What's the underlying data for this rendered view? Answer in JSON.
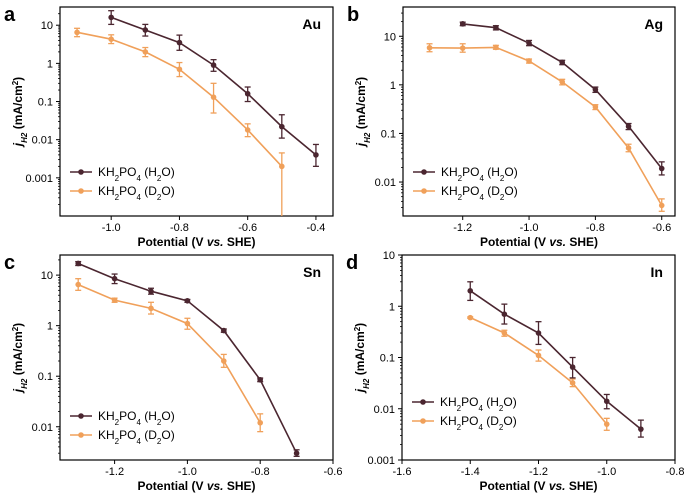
{
  "colors": {
    "h2o": "#4b2630",
    "d2o": "#f0a05a",
    "axis": "#000000"
  },
  "chart_data": [
    {
      "type": "line",
      "panel": "a",
      "metal": "Au",
      "xlabel": "Potential (V vs. SHE)",
      "ylabel": "jH2 (mA/cm2)",
      "log_y": true,
      "xlim": [
        -1.15,
        -0.35
      ],
      "ylim": [
        0.0001,
        30
      ],
      "x_ticks": [
        -1.0,
        -0.8,
        -0.6,
        -0.4
      ],
      "x_tick_labels": [
        "-1.0",
        "-0.8",
        "-0.6",
        "-0.4"
      ],
      "y_ticks": [
        0.001,
        0.01,
        0.1,
        1,
        10
      ],
      "y_tick_labels": [
        "0.001",
        "0.01",
        "0.1",
        "1",
        "10"
      ],
      "legend_position": "bottom-left",
      "series": [
        {
          "name": "KH2PO4 (H2O)",
          "color": "#4b2630",
          "x": [
            -1.0,
            -0.9,
            -0.8,
            -0.7,
            -0.6,
            -0.5,
            -0.4
          ],
          "y": [
            16,
            7.5,
            3.5,
            0.9,
            0.16,
            0.022,
            0.004
          ],
          "err_hi": [
            24,
            10.5,
            5.5,
            1.25,
            0.24,
            0.045,
            0.0075
          ],
          "err_lo": [
            10.5,
            5.2,
            2.2,
            0.62,
            0.1,
            0.011,
            0.002
          ]
        },
        {
          "name": "KH2PO4 (D2O)",
          "color": "#f0a05a",
          "x": [
            -1.1,
            -1.0,
            -0.9,
            -0.8,
            -0.7,
            -0.6,
            -0.5
          ],
          "y": [
            6.5,
            4.3,
            2.0,
            0.7,
            0.13,
            0.018,
            0.002
          ],
          "err_hi": [
            8.3,
            5.6,
            2.6,
            1.05,
            0.3,
            0.026,
            0.0045
          ],
          "err_lo": [
            5.0,
            3.3,
            1.5,
            0.45,
            0.05,
            0.012,
            0.0001
          ]
        }
      ]
    },
    {
      "type": "line",
      "panel": "b",
      "metal": "Ag",
      "xlabel": "Potential (V vs. SHE)",
      "ylabel": "jH2 (mA/cm2)",
      "log_y": true,
      "xlim": [
        -1.38,
        -0.56
      ],
      "ylim": [
        0.002,
        40
      ],
      "x_ticks": [
        -1.2,
        -1.0,
        -0.8,
        -0.6
      ],
      "x_tick_labels": [
        "-1.2",
        "-1.0",
        "-0.8",
        "-0.6"
      ],
      "y_ticks": [
        0.01,
        0.1,
        1,
        10
      ],
      "y_tick_labels": [
        "0.01",
        "0.1",
        "1",
        "10"
      ],
      "legend_position": "bottom-left",
      "series": [
        {
          "name": "KH2PO4 (H2O)",
          "color": "#4b2630",
          "x": [
            -1.2,
            -1.1,
            -1.0,
            -0.9,
            -0.8,
            -0.7,
            -0.6
          ],
          "y": [
            18,
            15,
            7.2,
            2.9,
            0.8,
            0.14,
            0.019
          ],
          "err_hi": [
            19.5,
            16.5,
            8.2,
            3.2,
            0.9,
            0.16,
            0.026
          ],
          "err_lo": [
            16.5,
            13.5,
            6.4,
            2.6,
            0.7,
            0.12,
            0.014
          ]
        },
        {
          "name": "KH2PO4 (D2O)",
          "color": "#f0a05a",
          "x": [
            -1.3,
            -1.2,
            -1.1,
            -1.0,
            -0.9,
            -0.8,
            -0.7,
            -0.6
          ],
          "y": [
            5.8,
            5.7,
            5.9,
            3.1,
            1.15,
            0.35,
            0.05,
            0.0033
          ],
          "err_hi": [
            7.0,
            7.0,
            6.5,
            3.4,
            1.3,
            0.39,
            0.06,
            0.0045
          ],
          "err_lo": [
            4.8,
            4.7,
            5.4,
            2.8,
            1.0,
            0.31,
            0.042,
            0.0025
          ]
        }
      ]
    },
    {
      "type": "line",
      "panel": "c",
      "metal": "Sn",
      "xlabel": "Potential (V vs. SHE)",
      "ylabel": "jH2 (mA/cm2)",
      "log_y": true,
      "xlim": [
        -1.35,
        -0.6
      ],
      "ylim": [
        0.0022,
        25
      ],
      "x_ticks": [
        -1.2,
        -1.0,
        -0.8,
        -0.6
      ],
      "x_tick_labels": [
        "-1.2",
        "-1.0",
        "-0.8",
        "-0.6"
      ],
      "y_ticks": [
        0.01,
        0.1,
        1,
        10
      ],
      "y_tick_labels": [
        "0.01",
        "0.1",
        "1",
        "10"
      ],
      "legend_position": "bottom-left",
      "series": [
        {
          "name": "KH2PO4 (H2O)",
          "color": "#4b2630",
          "x": [
            -1.3,
            -1.2,
            -1.1,
            -1.0,
            -0.9,
            -0.8,
            -0.7
          ],
          "y": [
            17,
            8.5,
            4.8,
            3.1,
            0.8,
            0.085,
            0.003
          ],
          "err_hi": [
            18.5,
            10.5,
            5.5,
            3.3,
            0.86,
            0.092,
            0.0035
          ],
          "err_lo": [
            15.5,
            6.8,
            4.2,
            2.9,
            0.74,
            0.078,
            0.0026
          ]
        },
        {
          "name": "KH2PO4 (D2O)",
          "color": "#f0a05a",
          "x": [
            -1.3,
            -1.2,
            -1.1,
            -1.0,
            -0.9,
            -0.8
          ],
          "y": [
            6.5,
            3.2,
            2.2,
            1.1,
            0.2,
            0.012
          ],
          "err_hi": [
            8.5,
            3.5,
            2.9,
            1.4,
            0.27,
            0.018
          ],
          "err_lo": [
            5.0,
            2.9,
            1.7,
            0.85,
            0.15,
            0.008
          ]
        }
      ]
    },
    {
      "type": "line",
      "panel": "d",
      "metal": "In",
      "xlabel": "Potential (V vs. SHE)",
      "ylabel": "jH2 (mA/cm2)",
      "log_y": true,
      "xlim": [
        -1.6,
        -0.8
      ],
      "ylim": [
        0.001,
        10
      ],
      "x_ticks": [
        -1.6,
        -1.4,
        -1.2,
        -1.0,
        -0.8
      ],
      "x_tick_labels": [
        "-1.6",
        "-1.4",
        "-1.2",
        "-1.0",
        "-0.8"
      ],
      "y_ticks": [
        0.001,
        0.01,
        0.1,
        1,
        10
      ],
      "y_tick_labels": [
        "0.001",
        "0.01",
        "0.1",
        "1",
        "10"
      ],
      "legend_position": "bottom-left",
      "series": [
        {
          "name": "KH2PO4 (H2O)",
          "color": "#4b2630",
          "x": [
            -1.4,
            -1.3,
            -1.2,
            -1.1,
            -1.0,
            -0.9
          ],
          "y": [
            2.0,
            0.7,
            0.3,
            0.065,
            0.014,
            0.004
          ],
          "err_hi": [
            3.0,
            1.1,
            0.5,
            0.1,
            0.019,
            0.006
          ],
          "err_lo": [
            1.3,
            0.45,
            0.18,
            0.04,
            0.01,
            0.0028
          ]
        },
        {
          "name": "KH2PO4 (D2O)",
          "color": "#f0a05a",
          "x": [
            -1.4,
            -1.3,
            -1.2,
            -1.1,
            -1.0
          ],
          "y": [
            0.6,
            0.3,
            0.11,
            0.032,
            0.005
          ],
          "err_hi": [
            0.62,
            0.34,
            0.14,
            0.038,
            0.0065
          ],
          "err_lo": [
            0.58,
            0.26,
            0.085,
            0.027,
            0.0038
          ]
        }
      ]
    }
  ]
}
